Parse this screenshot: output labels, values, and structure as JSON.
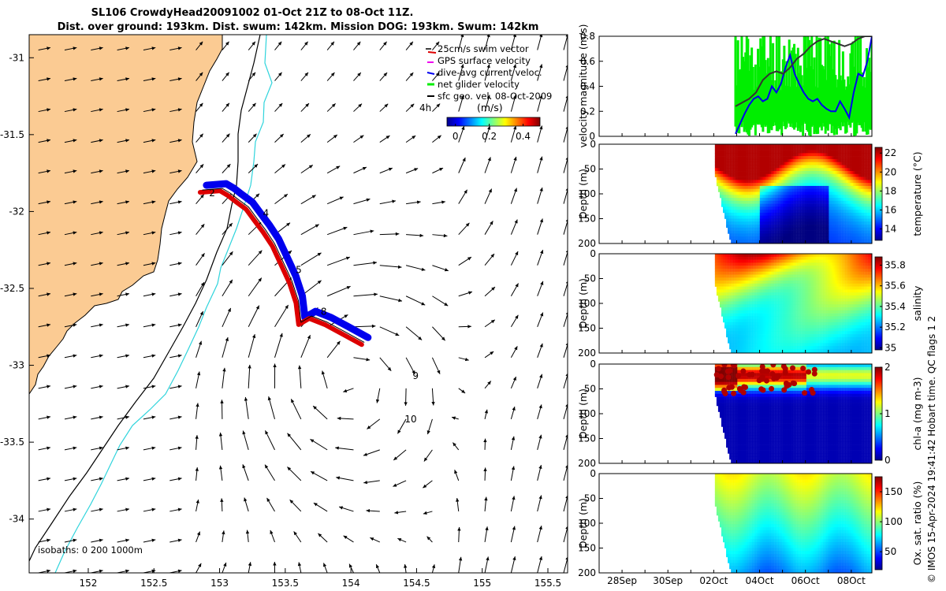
{
  "title": {
    "line1": "SL106 CrowdyHead20091002 01-Oct 21Z to 08-Oct 11Z.",
    "line2": "Dist. over ground: 193km. Dist. swum: 142km. Mission DOG: 193km. Swum: 142km"
  },
  "credit": "© IMOS 15-Apr-2024 19:41:42 Hobart time. QC flags 1  2",
  "colors": {
    "land": "#fbcb93",
    "isobath200": "#000000",
    "isobath1000": "#2fd4dc",
    "track_red": "#dd0000",
    "track_blue": "#0000ee",
    "net_green": "#00ee00",
    "geo_black": "#000000"
  },
  "chart_data": [
    {
      "type": "map",
      "name": "glider-track-map",
      "xlim": [
        151.55,
        155.65
      ],
      "ylim": [
        -34.35,
        -30.85
      ],
      "x_ticks": [
        "152",
        "152.5",
        "153",
        "153.5",
        "154",
        "154.5",
        "155",
        "155.5"
      ],
      "x_tick_values": [
        152,
        152.5,
        153,
        153.5,
        154,
        154.5,
        155,
        155.5
      ],
      "y_ticks": [
        "-31",
        "-31.5",
        "-32",
        "-32.5",
        "-33",
        "-33.5",
        "-34"
      ],
      "y_tick_values": [
        -31,
        -31.5,
        -32,
        -32.5,
        -33,
        -33.5,
        -34
      ],
      "legend": {
        "position": "top-right",
        "entries": [
          {
            "label": "25cm/s swim vector",
            "color": "#dd0000"
          },
          {
            "label": "GPS surface velocity",
            "color": "#ee00ee"
          },
          {
            "label": "dive-avg current veloc.",
            "color": "#0000ee"
          },
          {
            "label": "net glider velocity",
            "color": "#00ee00"
          },
          {
            "label": "sfc geo. vel. 08-Oct-2009",
            "color": "#000000"
          }
        ],
        "ref_arrow_label": "4h"
      },
      "colorbar": {
        "label": "(m/s)",
        "ticks": [
          "0",
          "0.2",
          "0.4"
        ],
        "tick_values": [
          0,
          0.2,
          0.4
        ],
        "range": [
          -0.05,
          0.5
        ]
      },
      "isobath_label": "isobaths: 0   200  1000m",
      "track": [
        [
          152.87,
          -31.86
        ],
        [
          153.02,
          -31.85
        ],
        [
          153.08,
          -31.88
        ],
        [
          153.14,
          -31.92
        ],
        [
          153.22,
          -31.97
        ],
        [
          153.28,
          -32.04
        ],
        [
          153.35,
          -32.12
        ],
        [
          153.42,
          -32.21
        ],
        [
          153.48,
          -32.32
        ],
        [
          153.55,
          -32.45
        ],
        [
          153.6,
          -32.58
        ],
        [
          153.62,
          -32.72
        ],
        [
          153.7,
          -32.68
        ],
        [
          153.82,
          -32.72
        ],
        [
          153.95,
          -32.78
        ],
        [
          154.1,
          -32.85
        ]
      ],
      "waypoints": [
        {
          "label": "2",
          "lon": 152.92,
          "lat": -31.88
        },
        {
          "label": "4",
          "lon": 153.33,
          "lat": -32.01
        },
        {
          "label": "5",
          "lon": 153.58,
          "lat": -32.38
        },
        {
          "label": "8",
          "lon": 153.77,
          "lat": -32.65
        },
        {
          "label": "9",
          "lon": 154.47,
          "lat": -33.07
        },
        {
          "label": "10",
          "lon": 154.41,
          "lat": -33.35
        }
      ]
    },
    {
      "type": "line",
      "name": "velocity-magnitude",
      "ylabel": "velocity magnitude (m/s)",
      "ylim": [
        0,
        0.8
      ],
      "y_ticks": [
        "0",
        "0.2",
        "0.4",
        "0.6",
        "0.8"
      ],
      "y_tick_values": [
        0,
        0.2,
        0.4,
        0.6,
        0.8
      ],
      "xlim": [
        0,
        12
      ],
      "series": [
        {
          "name": "dive-avg current veloc.",
          "color": "#0000ee",
          "x": [
            6.0,
            6.2,
            6.4,
            6.6,
            6.8,
            7.0,
            7.2,
            7.4,
            7.6,
            7.8,
            8.0,
            8.2,
            8.4,
            8.6,
            8.8,
            9.0,
            9.2,
            9.4,
            9.6,
            9.8,
            10.0,
            10.2,
            10.4,
            10.6,
            10.8,
            11.0,
            11.2,
            11.4,
            11.6,
            11.8,
            12.0
          ],
          "y": [
            0.02,
            0.1,
            0.18,
            0.25,
            0.3,
            0.32,
            0.28,
            0.3,
            0.4,
            0.35,
            0.42,
            0.55,
            0.65,
            0.5,
            0.42,
            0.35,
            0.3,
            0.28,
            0.3,
            0.25,
            0.22,
            0.2,
            0.2,
            0.28,
            0.22,
            0.15,
            0.35,
            0.5,
            0.48,
            0.6,
            0.8
          ]
        },
        {
          "name": "sfc geo. vel. 08-Oct-2009",
          "color": "#333333",
          "x": [
            6.0,
            6.3,
            6.6,
            6.9,
            7.2,
            7.5,
            7.8,
            8.1,
            8.4,
            8.7,
            9.0,
            9.3,
            9.6,
            9.9,
            10.2,
            10.5,
            10.8,
            11.1,
            11.4,
            11.7,
            12.0
          ],
          "y": [
            0.24,
            0.27,
            0.3,
            0.35,
            0.45,
            0.5,
            0.52,
            0.5,
            0.55,
            0.62,
            0.66,
            0.72,
            0.76,
            0.78,
            0.76,
            0.74,
            0.72,
            0.74,
            0.78,
            0.8,
            0.8
          ]
        }
      ]
    },
    {
      "type": "heatmap",
      "name": "temperature-section",
      "ylabel": "Depth (m)",
      "ylim": [
        200,
        0
      ],
      "colorbar_label": "temperature (°C)",
      "colorbar_ticks": [
        "14",
        "16",
        "18",
        "20",
        "22"
      ],
      "colorbar_tick_values": [
        14,
        16,
        18,
        20,
        22
      ],
      "crange": [
        12.8,
        22.6
      ]
    },
    {
      "type": "heatmap",
      "name": "salinity-section",
      "ylabel": "Depth (m)",
      "ylim": [
        200,
        0
      ],
      "colorbar_label": "salinity",
      "colorbar_ticks": [
        "35",
        "35.2",
        "35.4",
        "35.6",
        "35.8"
      ],
      "colorbar_tick_values": [
        35,
        35.2,
        35.4,
        35.6,
        35.8
      ],
      "crange": [
        34.98,
        35.88
      ]
    },
    {
      "type": "heatmap",
      "name": "chl-a-section",
      "ylabel": "Depth (m)",
      "ylim": [
        200,
        0
      ],
      "colorbar_label": "chl-a (mg m-3)",
      "colorbar_ticks": [
        "0",
        "1",
        "2"
      ],
      "colorbar_tick_values": [
        0,
        1,
        2
      ],
      "crange": [
        0,
        2
      ]
    },
    {
      "type": "heatmap",
      "name": "oxygen-section",
      "ylabel": "Depth (m)",
      "ylim": [
        200,
        0
      ],
      "colorbar_label": "Ox. sat. ratio (%)",
      "colorbar_ticks": [
        "50",
        "100",
        "150"
      ],
      "colorbar_tick_values": [
        50,
        100,
        150
      ],
      "crange": [
        20,
        175
      ]
    }
  ],
  "section_common": {
    "y_ticks": [
      "0",
      "50",
      "100",
      "150",
      "200"
    ],
    "y_tick_values": [
      0,
      50,
      100,
      150,
      200
    ],
    "x_ticks": [
      "28Sep",
      "30Sep",
      "02Oct",
      "04Oct",
      "06Oct",
      "08Oct"
    ],
    "x_tick_values": [
      -4,
      -2,
      0,
      2,
      4,
      6
    ],
    "x_ticks_minor": [
      -5,
      -3,
      -1,
      1,
      3,
      5
    ],
    "data_start": 0.05,
    "data_end": 6.9
  }
}
